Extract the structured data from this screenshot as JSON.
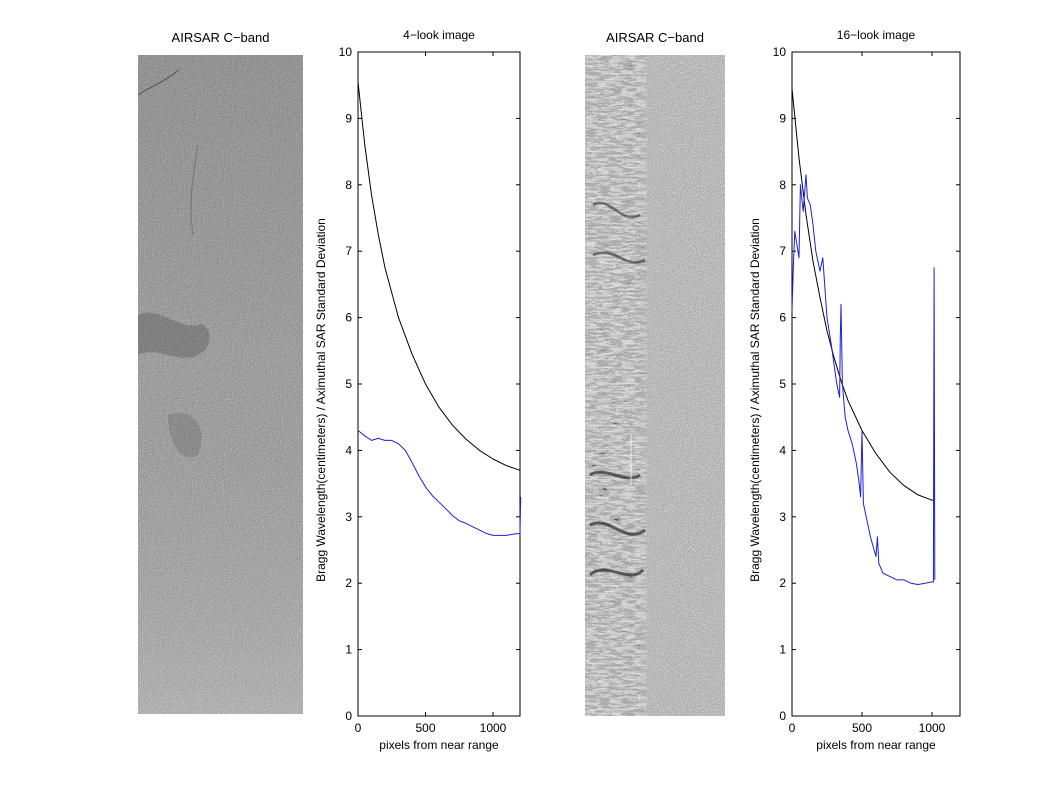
{
  "images": [
    {
      "title": "AIRSAR C−band"
    },
    {
      "title": "AIRSAR C−band"
    }
  ],
  "chart_data": [
    {
      "type": "line",
      "title": "4−look image",
      "xlabel": "pixels from near range",
      "ylabel": "Bragg Wavelength(centimeters) / Aximuthal SAR Standard Deviation",
      "xlim": [
        0,
        1200
      ],
      "ylim": [
        0,
        10
      ],
      "xticks": [
        0,
        500,
        1000
      ],
      "yticks": [
        0,
        1,
        2,
        3,
        4,
        5,
        6,
        7,
        8,
        9,
        10
      ],
      "grid": false,
      "series": [
        {
          "color": "#000000",
          "x": [
            0,
            50,
            100,
            150,
            200,
            300,
            400,
            500,
            600,
            700,
            800,
            900,
            1000,
            1100,
            1200
          ],
          "y": [
            9.55,
            8.6,
            7.85,
            7.25,
            6.75,
            6.0,
            5.45,
            5.0,
            4.65,
            4.38,
            4.17,
            4.0,
            3.87,
            3.77,
            3.7
          ]
        },
        {
          "color": "#1f1fd6",
          "x": [
            0,
            50,
            100,
            150,
            200,
            250,
            300,
            350,
            400,
            450,
            500,
            550,
            600,
            650,
            700,
            750,
            800,
            850,
            900,
            950,
            1000,
            1050,
            1100,
            1150,
            1200,
            1205
          ],
          "y": [
            4.3,
            4.22,
            4.15,
            4.18,
            4.15,
            4.15,
            4.1,
            4.0,
            3.82,
            3.62,
            3.45,
            3.32,
            3.22,
            3.12,
            3.02,
            2.94,
            2.9,
            2.85,
            2.8,
            2.75,
            2.72,
            2.72,
            2.72,
            2.74,
            2.75,
            3.3
          ]
        }
      ]
    },
    {
      "type": "line",
      "title": "16−look image",
      "xlabel": "pixels from near range",
      "ylabel": "Bragg Wavelength(centimeters) / Aximuthal SAR Standard Deviation",
      "xlim": [
        0,
        1200
      ],
      "ylim": [
        0,
        10
      ],
      "xticks": [
        0,
        500,
        1000
      ],
      "yticks": [
        0,
        1,
        2,
        3,
        4,
        5,
        6,
        7,
        8,
        9,
        10
      ],
      "grid": false,
      "series": [
        {
          "color": "#000000",
          "x": [
            0,
            50,
            100,
            150,
            200,
            250,
            300,
            350,
            400,
            500,
            600,
            700,
            800,
            900,
            1000,
            1020
          ],
          "y": [
            9.45,
            8.4,
            7.55,
            6.85,
            6.3,
            5.8,
            5.4,
            5.05,
            4.75,
            4.3,
            3.95,
            3.67,
            3.47,
            3.33,
            3.25,
            3.25
          ]
        },
        {
          "color": "#1f1fd6",
          "x": [
            0,
            10,
            20,
            35,
            50,
            60,
            80,
            100,
            110,
            130,
            150,
            170,
            200,
            220,
            250,
            280,
            300,
            320,
            340,
            345,
            350,
            360,
            380,
            400,
            430,
            460,
            480,
            490,
            500,
            510,
            530,
            560,
            600,
            610,
            620,
            650,
            700,
            750,
            800,
            850,
            900,
            950,
            1000,
            1010,
            1015,
            1020
          ],
          "y": [
            6.1,
            6.8,
            7.3,
            7.1,
            6.9,
            8.0,
            7.6,
            8.15,
            7.8,
            7.7,
            7.4,
            7.0,
            6.7,
            6.9,
            6.0,
            5.6,
            5.3,
            5.0,
            4.8,
            5.7,
            6.2,
            5.0,
            4.5,
            4.3,
            4.1,
            3.8,
            3.5,
            3.3,
            4.3,
            3.2,
            3.0,
            2.7,
            2.4,
            2.7,
            2.3,
            2.15,
            2.1,
            2.05,
            2.05,
            2.0,
            1.98,
            2.0,
            2.02,
            2.02,
            6.75,
            2.05
          ]
        }
      ]
    }
  ]
}
